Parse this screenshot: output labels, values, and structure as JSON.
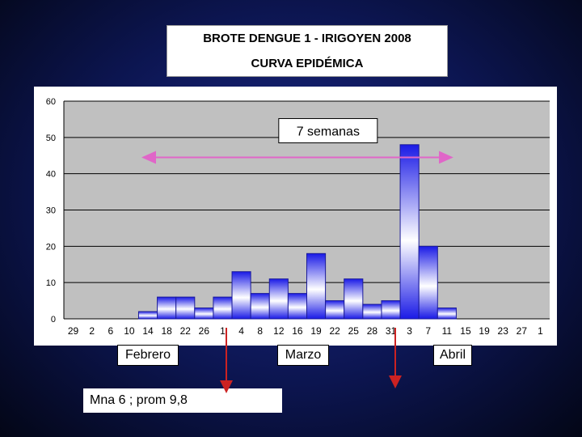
{
  "title": {
    "line1": "BROTE DENGUE 1 - IRIGOYEN 2008",
    "line2": "CURVA EPIDÉMICA"
  },
  "chart_data": {
    "type": "bar",
    "title": "",
    "xlabel": "",
    "ylabel": "",
    "ylim": [
      0,
      60
    ],
    "yticks": [
      0,
      10,
      20,
      30,
      40,
      50,
      60
    ],
    "grid": true,
    "categories": [
      "29",
      "2",
      "6",
      "10",
      "14",
      "18",
      "22",
      "26",
      "1",
      "4",
      "8",
      "12",
      "16",
      "19",
      "22",
      "25",
      "28",
      "31",
      "3",
      "7",
      "11",
      "15",
      "19",
      "23",
      "27",
      "1"
    ],
    "values": [
      0,
      0,
      0,
      0,
      2,
      6,
      6,
      3,
      6,
      13,
      7,
      11,
      7,
      18,
      5,
      11,
      4,
      5,
      48,
      20,
      3,
      0,
      0,
      0,
      0,
      0
    ],
    "annotations": {
      "span_label": "7 semanas",
      "span_from": "14",
      "span_to": "11"
    },
    "colors": {
      "bar_dark": "#1a1ae6",
      "bar_light": "#ffffff",
      "plot_bg": "#c0c0c0",
      "span_arrow": "#e066c8",
      "marker_arrow": "#cc2222"
    }
  },
  "months": [
    "Febrero",
    "Marzo",
    "Abril"
  ],
  "note": "Mna 6 ; prom 9,8"
}
